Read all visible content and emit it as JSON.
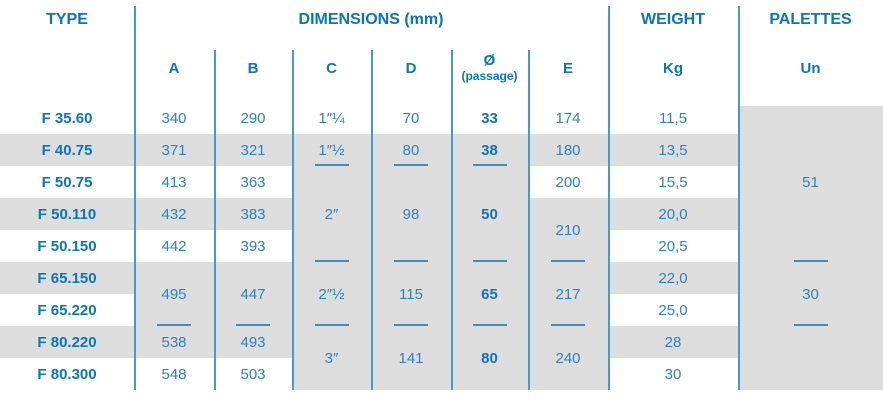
{
  "table": {
    "header": {
      "type": "TYPE",
      "dimensions": "DIMENSIONS (mm)",
      "weight": "WEIGHT",
      "palettes": "PALETTES",
      "sub": {
        "a": "A",
        "b": "B",
        "c": "C",
        "d": "D",
        "diameter": "Ø",
        "diameter_sub": "(passage)",
        "e": "E",
        "kg": "Kg",
        "un": "Un"
      }
    },
    "rows": [
      "F 35.60",
      "F 40.75",
      "F 50.75",
      "F 50.110",
      "F 50.150",
      "F 65.150",
      "F 65.220",
      "F 80.220",
      "F 80.300"
    ],
    "columns": {
      "a": {
        "bold": false,
        "cells": [
          {
            "r": [
              1,
              1
            ],
            "v": "340"
          },
          {
            "r": [
              2,
              2
            ],
            "v": "371"
          },
          {
            "r": [
              3,
              3
            ],
            "v": "413"
          },
          {
            "r": [
              4,
              4
            ],
            "v": "432"
          },
          {
            "r": [
              5,
              5
            ],
            "v": "442"
          },
          {
            "r": [
              6,
              7
            ],
            "v": "495"
          },
          {
            "r": [
              8,
              8
            ],
            "v": "538"
          },
          {
            "r": [
              9,
              9
            ],
            "v": "548"
          }
        ],
        "dividers": [
          7
        ]
      },
      "b": {
        "bold": false,
        "cells": [
          {
            "r": [
              1,
              1
            ],
            "v": "290"
          },
          {
            "r": [
              2,
              2
            ],
            "v": "321"
          },
          {
            "r": [
              3,
              3
            ],
            "v": "363"
          },
          {
            "r": [
              4,
              4
            ],
            "v": "383"
          },
          {
            "r": [
              5,
              5
            ],
            "v": "393"
          },
          {
            "r": [
              6,
              7
            ],
            "v": "447"
          },
          {
            "r": [
              8,
              8
            ],
            "v": "493"
          },
          {
            "r": [
              9,
              9
            ],
            "v": "503"
          }
        ],
        "dividers": [
          7
        ]
      },
      "c": {
        "bold": false,
        "cells": [
          {
            "r": [
              1,
              1
            ],
            "v": "1″¼"
          },
          {
            "r": [
              2,
              2
            ],
            "v": "1″½"
          },
          {
            "r": [
              3,
              5
            ],
            "v": "2″"
          },
          {
            "r": [
              6,
              7
            ],
            "v": "2″½"
          },
          {
            "r": [
              8,
              9
            ],
            "v": "3″"
          }
        ],
        "dividers": [
          2,
          5,
          7
        ]
      },
      "d": {
        "bold": false,
        "cells": [
          {
            "r": [
              1,
              1
            ],
            "v": "70"
          },
          {
            "r": [
              2,
              2
            ],
            "v": "80"
          },
          {
            "r": [
              3,
              5
            ],
            "v": "98"
          },
          {
            "r": [
              6,
              7
            ],
            "v": "115"
          },
          {
            "r": [
              8,
              9
            ],
            "v": "141"
          }
        ],
        "dividers": [
          2,
          5,
          7
        ]
      },
      "dia": {
        "bold": true,
        "cells": [
          {
            "r": [
              1,
              1
            ],
            "v": "33"
          },
          {
            "r": [
              2,
              2
            ],
            "v": "38"
          },
          {
            "r": [
              3,
              5
            ],
            "v": "50"
          },
          {
            "r": [
              6,
              7
            ],
            "v": "65"
          },
          {
            "r": [
              8,
              9
            ],
            "v": "80"
          }
        ],
        "dividers": [
          2,
          5,
          7
        ]
      },
      "e": {
        "bold": false,
        "cells": [
          {
            "r": [
              1,
              1
            ],
            "v": "174"
          },
          {
            "r": [
              2,
              2
            ],
            "v": "180"
          },
          {
            "r": [
              3,
              3
            ],
            "v": "200"
          },
          {
            "r": [
              4,
              5
            ],
            "v": "210"
          },
          {
            "r": [
              6,
              7
            ],
            "v": "217"
          },
          {
            "r": [
              8,
              9
            ],
            "v": "240"
          }
        ],
        "dividers": [
          5,
          7
        ]
      },
      "kg": {
        "bold": false,
        "cells": [
          {
            "r": [
              1,
              1
            ],
            "v": "11,5"
          },
          {
            "r": [
              2,
              2
            ],
            "v": "13,5"
          },
          {
            "r": [
              3,
              3
            ],
            "v": "15,5"
          },
          {
            "r": [
              4,
              4
            ],
            "v": "20,0"
          },
          {
            "r": [
              5,
              5
            ],
            "v": "20,5"
          },
          {
            "r": [
              6,
              6
            ],
            "v": "22,0"
          },
          {
            "r": [
              7,
              7
            ],
            "v": "25,0"
          },
          {
            "r": [
              8,
              8
            ],
            "v": "28"
          },
          {
            "r": [
              9,
              9
            ],
            "v": "30"
          }
        ],
        "dividers": []
      },
      "un": {
        "bold": false,
        "cells": [
          {
            "r": [
              1,
              5
            ],
            "v": "51"
          },
          {
            "r": [
              6,
              7
            ],
            "v": "30"
          }
        ],
        "dividers": [
          5,
          7
        ]
      }
    },
    "colors": {
      "accent": "#0D75B3",
      "value": "#2F82B9",
      "line": "#4E97C5",
      "divider": "#3E8CBE",
      "stripe": "#DDDDDE"
    }
  }
}
